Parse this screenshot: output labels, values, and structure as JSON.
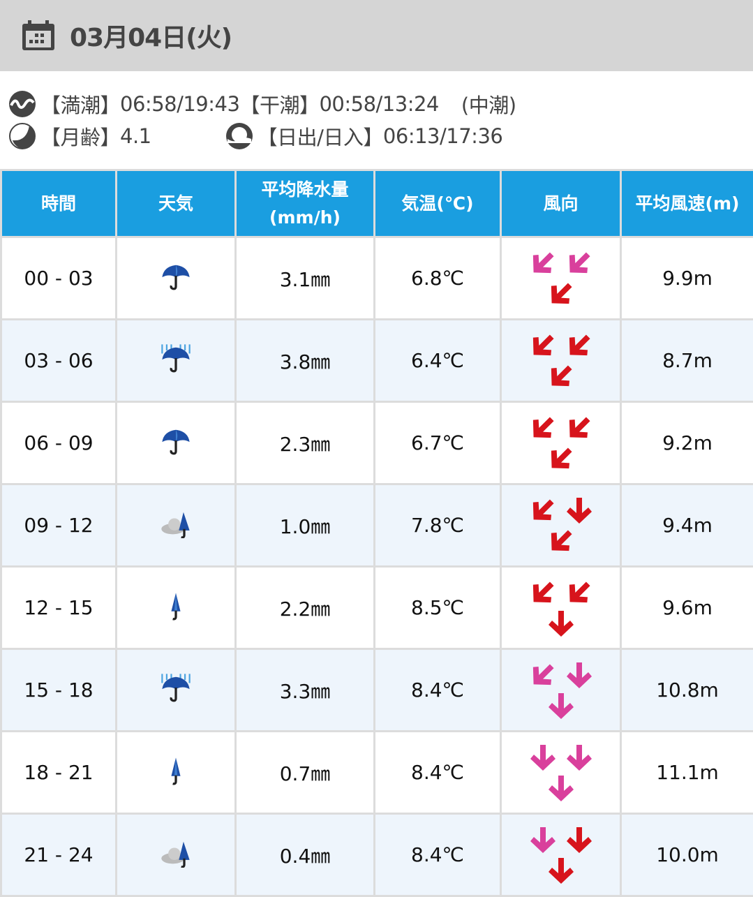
{
  "header": {
    "title": "03月04日(火)",
    "icon": "calendar-icon"
  },
  "tide": {
    "high_label": "【満潮】",
    "high": "06:58/19:43",
    "low_label": "【干潮】",
    "low": "00:58/13:24",
    "type": "(中潮)",
    "icon": "tide-wave-icon"
  },
  "moon": {
    "label": "【月齢】",
    "value": "4.1",
    "icon": "moon-icon"
  },
  "sun": {
    "label": "【日出/日入】",
    "value": "06:13/17:36",
    "icon": "sunrise-icon"
  },
  "colors": {
    "header_blue": "#1a9ee0",
    "arrow_red": "#d7141c",
    "arrow_pink": "#d9409c"
  },
  "table": {
    "headers": [
      "時間",
      "天気",
      "平均降水量",
      "(mm/h)",
      "気温(℃)",
      "風向",
      "平均風速(m)"
    ],
    "rows": [
      {
        "time": "00 - 03",
        "weather": "umbrella",
        "rain": "3.1㎜",
        "temp": "6.8℃",
        "wind": [
          [
            "SW",
            "pink"
          ],
          [
            "SW",
            "pink"
          ],
          [
            "SW",
            "red"
          ]
        ],
        "speed": "9.9m"
      },
      {
        "time": "03 - 06",
        "weather": "umbrella-rain",
        "rain": "3.8㎜",
        "temp": "6.4℃",
        "wind": [
          [
            "SW",
            "red"
          ],
          [
            "SW",
            "red"
          ],
          [
            "SW",
            "red"
          ]
        ],
        "speed": "8.7m"
      },
      {
        "time": "06 - 09",
        "weather": "umbrella",
        "rain": "2.3㎜",
        "temp": "6.7℃",
        "wind": [
          [
            "SW",
            "red"
          ],
          [
            "SW",
            "red"
          ],
          [
            "SW",
            "red"
          ]
        ],
        "speed": "9.2m"
      },
      {
        "time": "09 - 12",
        "weather": "cloud-umbrella",
        "rain": "1.0㎜",
        "temp": "7.8℃",
        "wind": [
          [
            "SW",
            "red"
          ],
          [
            "S",
            "red"
          ],
          [
            "SW",
            "red"
          ]
        ],
        "speed": "9.4m"
      },
      {
        "time": "12 - 15",
        "weather": "closed-umbrella",
        "rain": "2.2㎜",
        "temp": "8.5℃",
        "wind": [
          [
            "SW",
            "red"
          ],
          [
            "SW",
            "red"
          ],
          [
            "S",
            "red"
          ]
        ],
        "speed": "9.6m"
      },
      {
        "time": "15 - 18",
        "weather": "umbrella-rain",
        "rain": "3.3㎜",
        "temp": "8.4℃",
        "wind": [
          [
            "SW",
            "pink"
          ],
          [
            "S",
            "pink"
          ],
          [
            "S",
            "pink"
          ]
        ],
        "speed": "10.8m"
      },
      {
        "time": "18 - 21",
        "weather": "closed-umbrella",
        "rain": "0.7㎜",
        "temp": "8.4℃",
        "wind": [
          [
            "S",
            "pink"
          ],
          [
            "S",
            "pink"
          ],
          [
            "S",
            "pink"
          ]
        ],
        "speed": "11.1m"
      },
      {
        "time": "21 - 24",
        "weather": "cloud-umbrella",
        "rain": "0.4㎜",
        "temp": "8.4℃",
        "wind": [
          [
            "S",
            "pink"
          ],
          [
            "S",
            "red"
          ],
          [
            "S",
            "red"
          ]
        ],
        "speed": "10.0m"
      }
    ]
  }
}
